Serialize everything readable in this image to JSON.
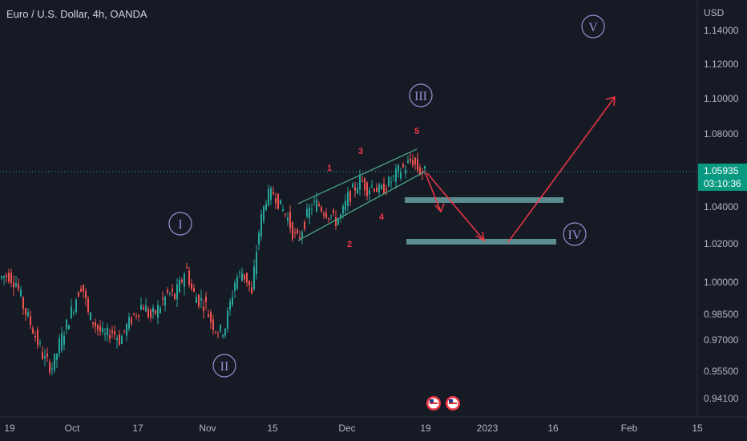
{
  "header": {
    "symbol_title": "Euro / U.S. Dollar, 4h, OANDA",
    "axis_unit": "USD"
  },
  "price_tag": {
    "price": "1.05935",
    "countdown": "03:10:36",
    "color": "#089981"
  },
  "colors": {
    "background": "#161a25",
    "up_candle": "#26a69a",
    "down_candle": "#ef5350",
    "annotation_red": "#f23645",
    "channel_line": "#4caf8c",
    "target_box": "#5b8c8f",
    "wave_circle": "#9b8fd1"
  },
  "chart_data": {
    "type": "candlestick",
    "y_axis_ticks": [
      "1.14000",
      "1.12000",
      "1.10000",
      "1.08000",
      "1.04000",
      "1.02000",
      "1.00000",
      "0.98500",
      "0.97000",
      "0.95500",
      "0.94100"
    ],
    "x_axis_ticks": [
      "19",
      "Oct",
      "17",
      "Nov",
      "15",
      "Dec",
      "19",
      "2023",
      "16",
      "Feb",
      "15"
    ],
    "current_price": 1.05935,
    "ylim": [
      0.935,
      1.148
    ],
    "grid": false,
    "series_waypoints": [
      [
        0,
        1.002
      ],
      [
        12,
        1.004
      ],
      [
        22,
        1.0
      ],
      [
        30,
        0.99
      ],
      [
        38,
        0.982
      ],
      [
        48,
        0.97
      ],
      [
        58,
        0.96
      ],
      [
        68,
        0.957
      ],
      [
        76,
        0.968
      ],
      [
        86,
        0.98
      ],
      [
        96,
        0.992
      ],
      [
        104,
        1.0
      ],
      [
        112,
        0.985
      ],
      [
        122,
        0.978
      ],
      [
        132,
        0.972
      ],
      [
        142,
        0.975
      ],
      [
        152,
        0.97
      ],
      [
        160,
        0.978
      ],
      [
        170,
        0.985
      ],
      [
        180,
        0.99
      ],
      [
        190,
        0.983
      ],
      [
        200,
        0.988
      ],
      [
        212,
        0.995
      ],
      [
        220,
        0.993
      ],
      [
        228,
        1.0
      ],
      [
        234,
        1.008
      ],
      [
        242,
        0.995
      ],
      [
        250,
        0.992
      ],
      [
        258,
        0.99
      ],
      [
        266,
        0.98
      ],
      [
        274,
        0.975
      ],
      [
        282,
        0.976
      ],
      [
        288,
        0.988
      ],
      [
        296,
        1.002
      ],
      [
        304,
        1.005
      ],
      [
        312,
        1.0
      ],
      [
        316,
        0.993
      ],
      [
        320,
        1.01
      ],
      [
        326,
        1.03
      ],
      [
        334,
        1.045
      ],
      [
        344,
        1.048
      ],
      [
        352,
        1.04
      ],
      [
        360,
        1.035
      ],
      [
        368,
        1.025
      ],
      [
        374,
        1.022
      ],
      [
        382,
        1.032
      ],
      [
        390,
        1.04
      ],
      [
        398,
        1.042
      ],
      [
        406,
        1.038
      ],
      [
        414,
        1.036
      ],
      [
        420,
        1.032
      ],
      [
        428,
        1.035
      ],
      [
        436,
        1.045
      ],
      [
        444,
        1.05
      ],
      [
        452,
        1.055
      ],
      [
        460,
        1.05
      ],
      [
        468,
        1.052
      ],
      [
        476,
        1.048
      ],
      [
        484,
        1.052
      ],
      [
        492,
        1.055
      ],
      [
        500,
        1.06
      ],
      [
        508,
        1.062
      ],
      [
        516,
        1.066
      ],
      [
        524,
        1.06
      ],
      [
        530,
        1.059
      ]
    ],
    "annotations": {
      "elliptical_waves": [
        "I",
        "II",
        "III",
        "IV",
        "V"
      ],
      "sub_waves": [
        "1",
        "2",
        "3",
        "4",
        "5"
      ]
    }
  }
}
